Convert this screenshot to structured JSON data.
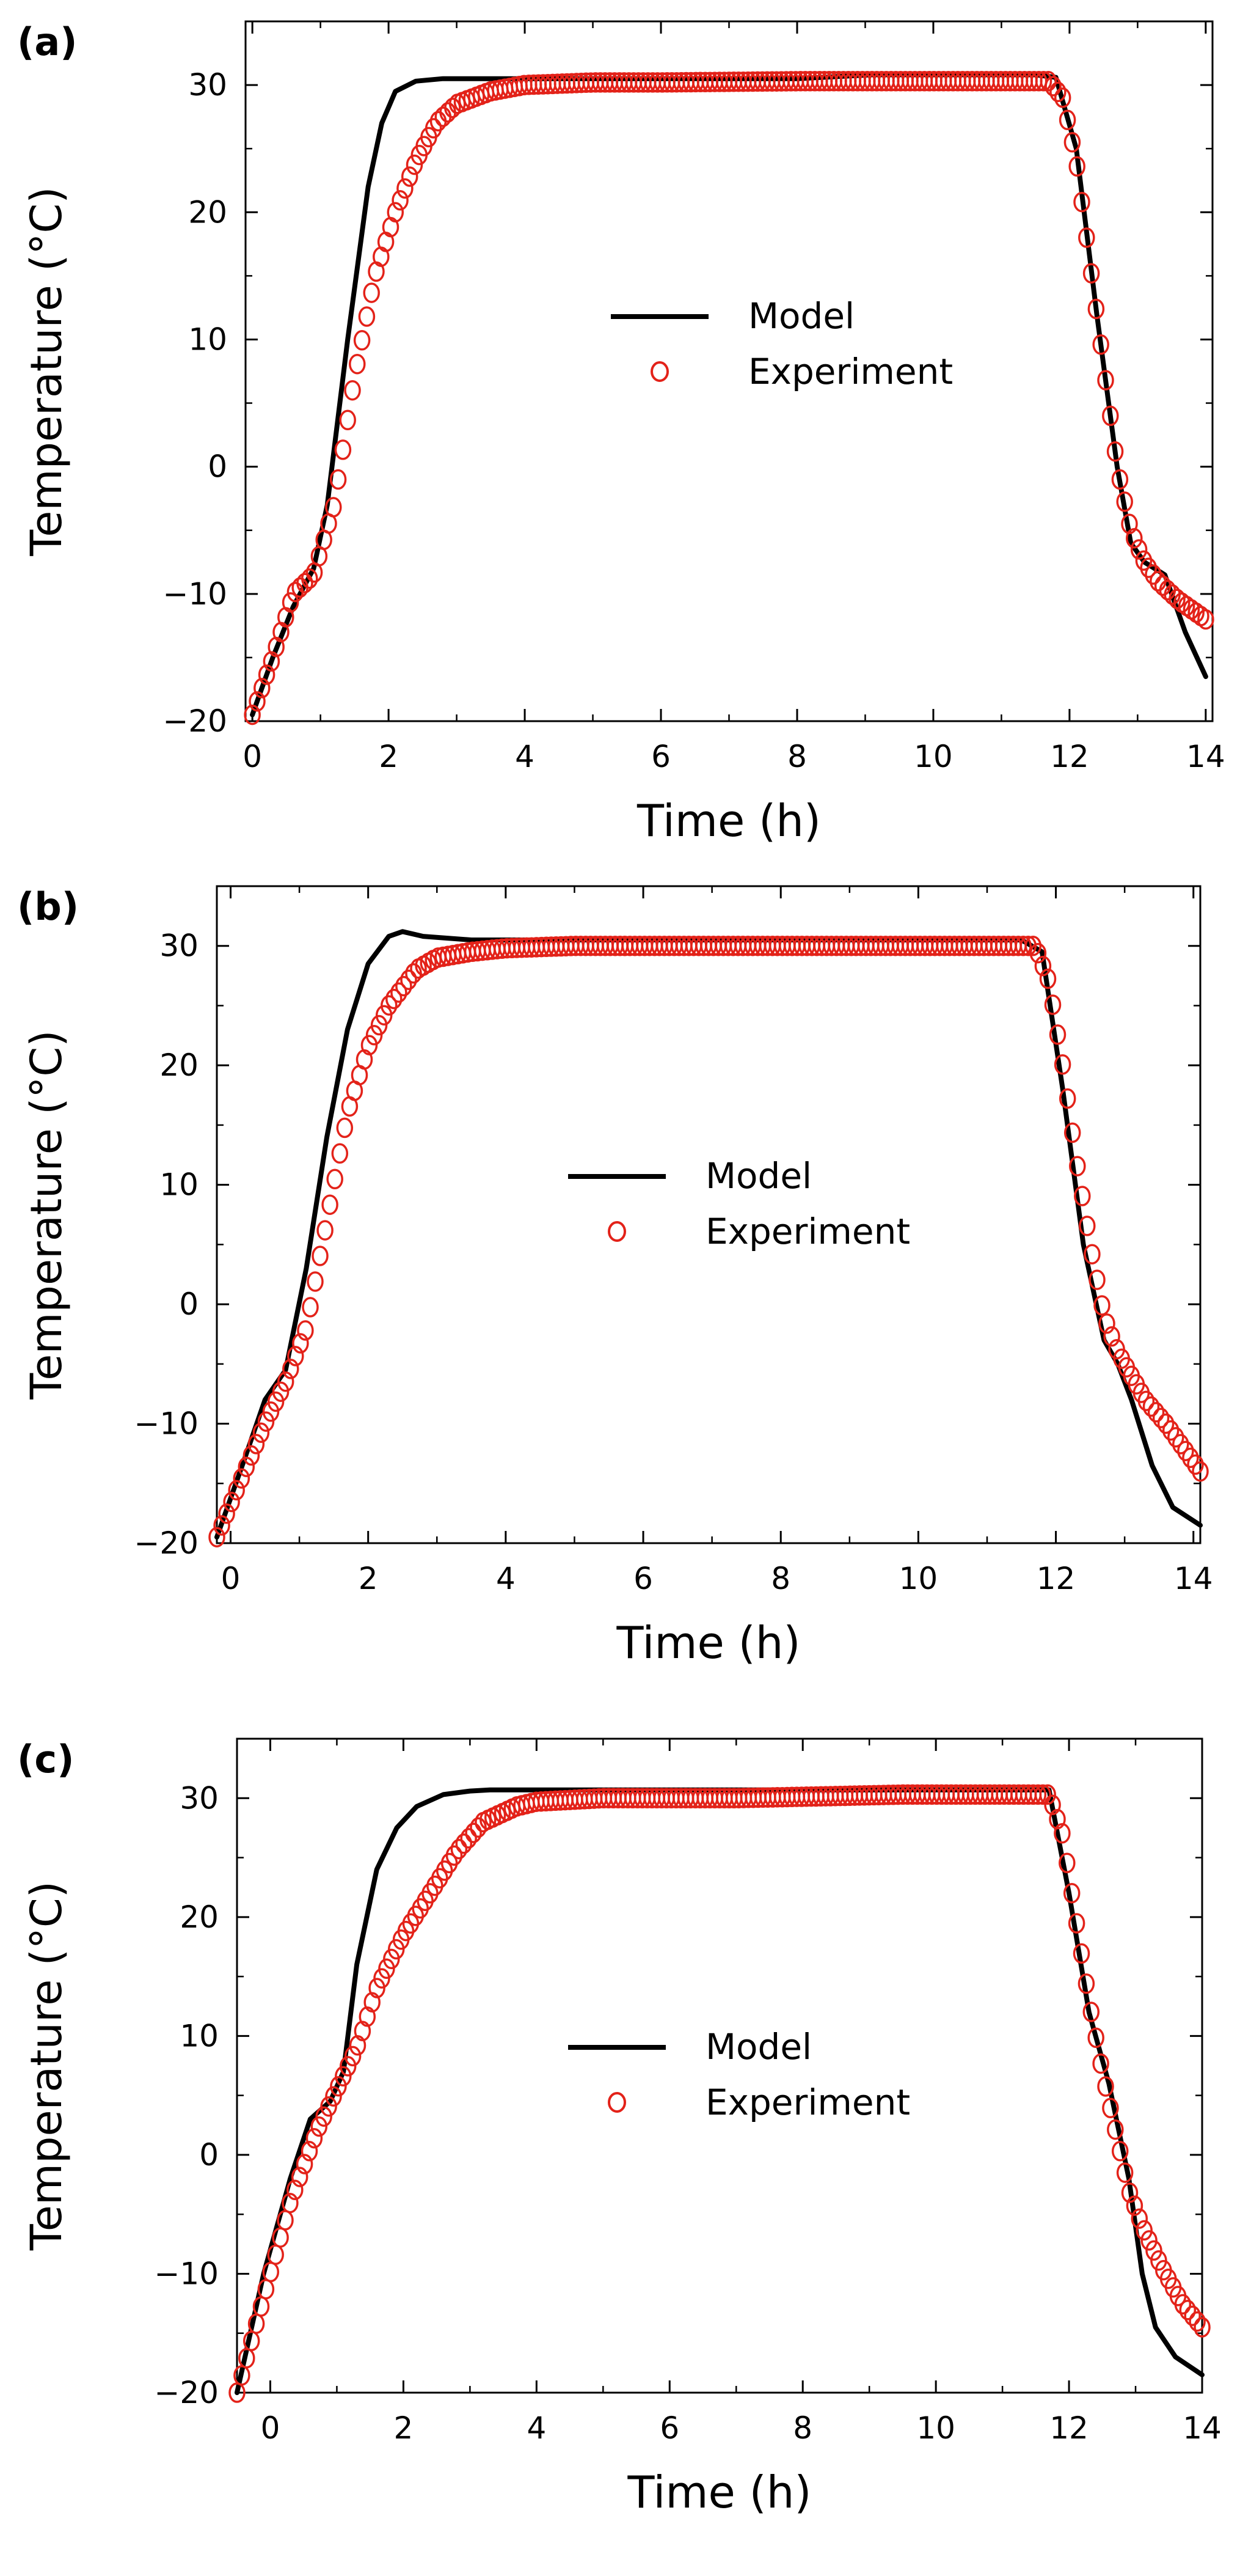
{
  "chart_data": [
    {
      "type": "line",
      "panel_label": "(a)",
      "xlabel": "Time (h)",
      "ylabel": "Temperature (°C)",
      "xlim": [
        -0.1,
        14.1
      ],
      "ylim": [
        -20,
        35
      ],
      "xticks": [
        0,
        2,
        4,
        6,
        8,
        10,
        12,
        14
      ],
      "xtick_labels": [
        "0",
        "2",
        "4",
        "6",
        "8",
        "10",
        "12",
        "14"
      ],
      "yticks": [
        -20,
        -10,
        0,
        10,
        20,
        30
      ],
      "ytick_labels": [
        "−20",
        "−10",
        "0",
        "10",
        "20",
        "30"
      ],
      "legend": [
        "Model",
        "Experiment"
      ],
      "series": [
        {
          "name": "Model",
          "style": "line",
          "color": "#000000",
          "x": [
            0,
            0.3,
            0.6,
            0.9,
            1.1,
            1.4,
            1.7,
            1.9,
            2.1,
            2.4,
            2.8,
            3.5,
            5,
            8,
            9.1,
            11.5,
            11.8,
            12.1,
            12.4,
            12.7,
            12.9,
            13.1,
            13.4,
            13.7,
            14.0
          ],
          "y": [
            -19.5,
            -15,
            -11,
            -8,
            -3,
            10,
            22,
            27,
            29.5,
            30.3,
            30.5,
            30.5,
            30.5,
            30.5,
            30.8,
            30.8,
            30.6,
            25,
            12,
            0,
            -6,
            -7.5,
            -8.5,
            -13,
            -16.5
          ]
        },
        {
          "name": "Experiment",
          "style": "marker",
          "color": "#e32219",
          "x": [
            0,
            0.3,
            0.6,
            0.9,
            1.2,
            1.5,
            1.8,
            2.1,
            2.4,
            2.7,
            3.0,
            3.5,
            4.0,
            5.0,
            6.0,
            8.0,
            10.0,
            11.0,
            11.7,
            11.9,
            12.1,
            12.3,
            12.5,
            12.7,
            12.9,
            13.1,
            13.3,
            13.6,
            14.0
          ],
          "y": [
            -19.5,
            -15,
            -10,
            -8.5,
            -3,
            7,
            15,
            20,
            24,
            27,
            28.5,
            29.5,
            30,
            30.2,
            30.2,
            30.3,
            30.3,
            30.3,
            30.3,
            29,
            24,
            16,
            8,
            0,
            -5,
            -7.5,
            -9,
            -10.5,
            -12
          ]
        }
      ]
    },
    {
      "type": "line",
      "panel_label": "(b)",
      "xlabel": "Time (h)",
      "ylabel": "Temperature (°C)",
      "xlim": [
        -0.2,
        14.1
      ],
      "ylim": [
        -20,
        35
      ],
      "xticks": [
        0,
        2,
        4,
        6,
        8,
        10,
        12,
        14
      ],
      "xtick_labels": [
        "0",
        "2",
        "4",
        "6",
        "8",
        "10",
        "12",
        "14"
      ],
      "yticks": [
        -20,
        -10,
        0,
        10,
        20,
        30
      ],
      "ytick_labels": [
        "−20",
        "−10",
        "0",
        "10",
        "20",
        "30"
      ],
      "legend": [
        "Model",
        "Experiment"
      ],
      "series": [
        {
          "name": "Model",
          "style": "line",
          "color": "#000000",
          "x": [
            -0.2,
            0.2,
            0.5,
            0.8,
            1.1,
            1.4,
            1.7,
            2.0,
            2.3,
            2.5,
            2.8,
            3.5,
            6,
            11.5,
            11.8,
            12.1,
            12.4,
            12.7,
            12.9,
            13.1,
            13.4,
            13.7,
            14.1
          ],
          "y": [
            -19.5,
            -13,
            -8,
            -5.5,
            3,
            14,
            23,
            28.5,
            30.8,
            31.2,
            30.8,
            30.5,
            30.5,
            30.5,
            29.5,
            18,
            5,
            -3,
            -5,
            -8,
            -13.5,
            -17,
            -18.5
          ]
        },
        {
          "name": "Experiment",
          "style": "marker",
          "color": "#e32219",
          "x": [
            -0.2,
            0.2,
            0.5,
            0.8,
            1.1,
            1.4,
            1.7,
            2.0,
            2.3,
            2.7,
            3.0,
            3.5,
            4.0,
            5.0,
            8.0,
            10.0,
            11.7,
            11.9,
            12.1,
            12.3,
            12.5,
            12.7,
            12.9,
            13.1,
            13.3,
            13.6,
            14.1
          ],
          "y": [
            -19.5,
            -14,
            -10,
            -6.5,
            -2,
            7,
            16,
            21.5,
            25,
            28,
            29,
            29.5,
            29.8,
            30,
            30,
            30,
            30,
            27,
            20,
            12,
            5,
            -1,
            -4,
            -6,
            -8,
            -10,
            -14
          ]
        }
      ]
    },
    {
      "type": "line",
      "panel_label": "(c)",
      "xlabel": "Time (h)",
      "ylabel": "Temperature (°C)",
      "xlim": [
        -0.5,
        14
      ],
      "ylim": [
        -20,
        35
      ],
      "xticks": [
        0,
        2,
        4,
        6,
        8,
        10,
        12,
        14
      ],
      "xtick_labels": [
        "0",
        "2",
        "4",
        "6",
        "8",
        "10",
        "12",
        "14"
      ],
      "yticks": [
        -20,
        -10,
        0,
        10,
        20,
        30
      ],
      "ytick_labels": [
        "−20",
        "−10",
        "0",
        "10",
        "20",
        "30"
      ],
      "legend": [
        "Model",
        "Experiment"
      ],
      "series": [
        {
          "name": "Model",
          "style": "line",
          "color": "#000000",
          "x": [
            -0.5,
            -0.1,
            0.3,
            0.6,
            0.9,
            1.1,
            1.3,
            1.6,
            1.9,
            2.2,
            2.6,
            3.0,
            3.3,
            6,
            11.7,
            12.0,
            12.3,
            12.6,
            12.9,
            13.1,
            13.3,
            13.6,
            14.0
          ],
          "y": [
            -20,
            -10,
            -2,
            3,
            4.5,
            7,
            16,
            24,
            27.5,
            29.3,
            30.3,
            30.6,
            30.7,
            30.7,
            30.7,
            22,
            12,
            6,
            -2,
            -10,
            -14.5,
            -17,
            -18.5
          ]
        },
        {
          "name": "Experiment",
          "style": "marker",
          "color": "#e32219",
          "x": [
            -0.5,
            -0.1,
            0.3,
            0.7,
            1.0,
            1.3,
            1.6,
            2.0,
            2.4,
            2.8,
            3.2,
            3.7,
            4.0,
            5.0,
            7.0,
            9.5,
            11.7,
            11.9,
            12.1,
            12.3,
            12.5,
            12.7,
            12.9,
            13.1,
            13.4,
            13.7,
            14.0
          ],
          "y": [
            -20,
            -12,
            -4,
            2,
            5.5,
            9,
            14,
            18.5,
            22,
            25.5,
            28,
            29.3,
            29.7,
            30,
            30,
            30.3,
            30.3,
            27,
            20,
            13,
            7,
            2,
            -3,
            -6,
            -9.5,
            -12.5,
            -14.5
          ]
        }
      ]
    }
  ]
}
